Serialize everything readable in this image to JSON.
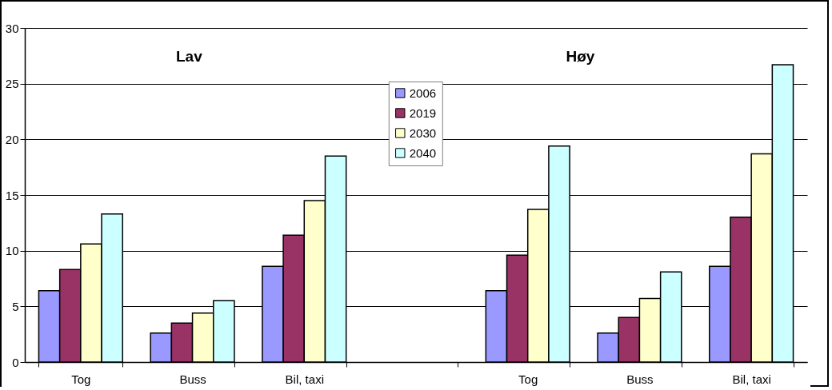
{
  "chart_data": {
    "type": "bar",
    "categories": [
      "Tog",
      "Buss",
      "Bil, taxi",
      null,
      "Tog",
      "Buss",
      "Bil, taxi"
    ],
    "series": [
      {
        "name": "2006",
        "color": "#9999ff",
        "values": [
          6.4,
          2.6,
          8.6,
          null,
          6.4,
          2.6,
          8.6
        ]
      },
      {
        "name": "2019",
        "color": "#993366",
        "values": [
          8.3,
          3.5,
          11.4,
          null,
          9.6,
          4.0,
          13.0
        ]
      },
      {
        "name": "2030",
        "color": "#ffffcc",
        "values": [
          10.6,
          4.4,
          14.5,
          null,
          13.7,
          5.7,
          18.7
        ]
      },
      {
        "name": "2040",
        "color": "#ccffff",
        "values": [
          13.3,
          5.5,
          18.5,
          null,
          19.4,
          8.1,
          26.7
        ]
      }
    ],
    "annotations": [
      "Lav",
      "Høy"
    ],
    "ylim": [
      0,
      30
    ],
    "yticks": [
      0,
      5,
      10,
      15,
      20,
      25,
      30
    ],
    "grid": "y",
    "legend": "top"
  }
}
